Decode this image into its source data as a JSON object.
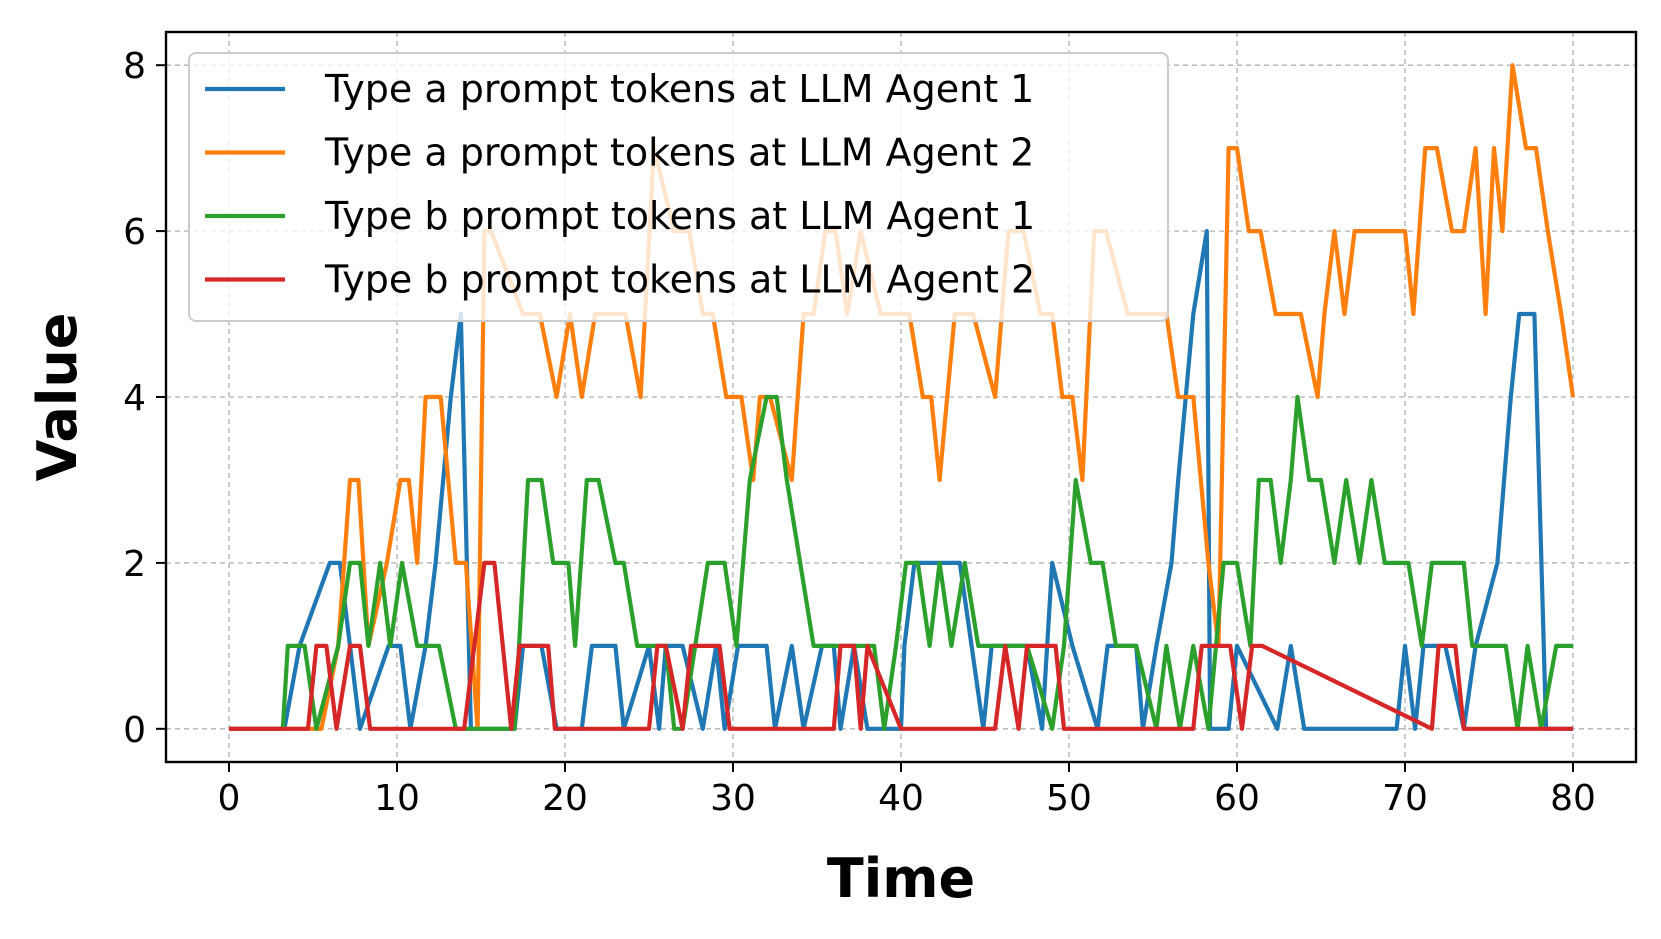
{
  "chart_data": {
    "type": "line",
    "title": "",
    "xlabel": "Time",
    "ylabel": "Value",
    "xlim": [
      -3.75,
      83.75
    ],
    "ylim": [
      -0.4,
      8.4
    ],
    "xticks": [
      0,
      10,
      20,
      30,
      40,
      50,
      60,
      70,
      80
    ],
    "yticks": [
      0,
      2,
      4,
      6,
      8
    ],
    "grid": true,
    "legend_position": "upper-left",
    "series": [
      {
        "name": "Type a prompt tokens at LLM Agent 1",
        "color": "#1f77b4",
        "x": [
          0,
          3.3,
          4.2,
          6,
          6.6,
          7.2,
          7.8,
          9.5,
          10.2,
          10.8,
          11.7,
          12.3,
          13.2,
          13.8,
          14.4,
          17,
          17.5,
          18.6,
          19.5,
          21,
          21.6,
          23,
          23.5,
          25,
          25.6,
          26,
          27,
          28.2,
          29,
          29.5,
          30.3,
          32,
          32.5,
          33.5,
          34.2,
          35.3,
          36,
          36.4,
          37.2,
          38,
          40,
          40.2,
          40.8,
          43.5,
          44.2,
          44.9,
          45.4,
          47.5,
          48.4,
          49,
          50.2,
          51.7,
          52.3,
          54,
          54.4,
          55.2,
          56.1,
          56.5,
          57.4,
          58.2,
          58.4,
          59.5,
          60,
          62.4,
          63.2,
          64,
          69.5,
          70,
          70.6,
          71.1,
          72.4,
          73.5,
          74.2,
          75.5,
          76.3,
          76.8,
          77.7,
          78.4,
          79.3,
          80
        ],
        "y": [
          0,
          0,
          1,
          2,
          2,
          1,
          0,
          1,
          1,
          0,
          1,
          2,
          4,
          5,
          0,
          0,
          1,
          1,
          0,
          0,
          1,
          1,
          0,
          1,
          0,
          1,
          1,
          0,
          1,
          0,
          1,
          1,
          0,
          1,
          0,
          1,
          1,
          0,
          1,
          0,
          0,
          1,
          2,
          2,
          1,
          0,
          1,
          1,
          0,
          2,
          1,
          0,
          1,
          1,
          0,
          1,
          2,
          3,
          5,
          6,
          0,
          0,
          1,
          0,
          1,
          0,
          0,
          1,
          0,
          1,
          1,
          0,
          1,
          2,
          4,
          5,
          5,
          0,
          0,
          0
        ]
      },
      {
        "name": "Type a prompt tokens at LLM Agent 2",
        "color": "#ff7f0e",
        "x": [
          0,
          3,
          5.5,
          6.5,
          7.2,
          7.7,
          8.3,
          9.4,
          10.2,
          10.7,
          11.2,
          11.7,
          12.6,
          13.5,
          14.1,
          14.8,
          15.2,
          15.6,
          17.5,
          18.5,
          19.5,
          20.3,
          21,
          21.8,
          22.5,
          23.6,
          24.5,
          25.3,
          26.5,
          27.4,
          28.2,
          28.8,
          29.6,
          30.5,
          31.2,
          31.6,
          32.2,
          33.5,
          34.2,
          34.8,
          35.5,
          36.1,
          36.8,
          37.6,
          38.8,
          39.6,
          40,
          40.5,
          41.3,
          41.8,
          42.3,
          43.2,
          44.3,
          45.6,
          46.4,
          47.3,
          48.3,
          49,
          49.6,
          50.2,
          50.8,
          51.5,
          52.2,
          53.5,
          55.8,
          56.5,
          57.4,
          58.3,
          58.9,
          59.5,
          60,
          60.7,
          61.4,
          62.3,
          63.1,
          63.8,
          64.8,
          65.2,
          65.8,
          66.4,
          67,
          67.6,
          68.2,
          68.8,
          69.3,
          70,
          70.5,
          71.2,
          71.9,
          72.8,
          73.5,
          74.2,
          74.8,
          75.3,
          75.8,
          76.4,
          77.2,
          77.8,
          78.5,
          79.3,
          80
        ],
        "y": [
          0,
          0,
          0,
          1,
          3,
          3,
          1,
          2,
          3,
          3,
          2,
          4,
          4,
          2,
          2,
          0,
          6,
          6,
          5,
          5,
          4,
          5,
          4,
          5,
          5,
          5,
          4,
          7,
          6,
          6,
          5,
          5,
          4,
          4,
          3,
          4,
          4,
          3,
          5,
          5,
          6,
          6,
          5,
          6,
          5,
          5,
          5,
          5,
          4,
          4,
          3,
          5,
          5,
          4,
          6,
          6,
          5,
          5,
          4,
          4,
          3,
          6,
          6,
          5,
          5,
          4,
          4,
          2,
          1,
          7,
          7,
          6,
          6,
          5,
          5,
          5,
          4,
          5,
          6,
          5,
          6,
          6,
          6,
          6,
          6,
          6,
          5,
          7,
          7,
          6,
          6,
          7,
          5,
          7,
          6,
          8,
          7,
          7,
          6,
          5,
          4
        ]
      },
      {
        "name": "Type b prompt tokens at LLM Agent 1",
        "color": "#2ca02c",
        "x": [
          0,
          3.2,
          3.5,
          4.5,
          5.2,
          6.5,
          7.2,
          7.8,
          8.3,
          9,
          9.6,
          10.3,
          11.2,
          11.8,
          12.5,
          13.5,
          14.4,
          15,
          16,
          17,
          17.8,
          18.6,
          19.3,
          20.2,
          20.6,
          21.3,
          22,
          23,
          23.5,
          24.3,
          25,
          26,
          26.5,
          27,
          28.5,
          29,
          29.5,
          30.2,
          31,
          32,
          32.6,
          33.2,
          34,
          34.8,
          35.6,
          36.5,
          37.4,
          38.4,
          39,
          39.7,
          40.3,
          41,
          41.7,
          42.3,
          43,
          43.8,
          44.6,
          45.3,
          46,
          47.5,
          49,
          49.7,
          50.4,
          51.3,
          52,
          52.8,
          54,
          55.2,
          55.8,
          56.6,
          57.4,
          58.3,
          59.2,
          60,
          60.8,
          61.3,
          62,
          62.6,
          63.2,
          63.6,
          64.3,
          65,
          65.8,
          66.5,
          67.3,
          68,
          68.8,
          69.4,
          70.2,
          71,
          71.6,
          72.4,
          73.5,
          74,
          74.6,
          75.2,
          76,
          76.7,
          77.3,
          78.1,
          79,
          80
        ],
        "y": [
          0,
          0,
          1,
          1,
          0,
          1,
          2,
          2,
          1,
          2,
          1,
          2,
          1,
          1,
          1,
          0,
          0,
          0,
          0,
          0,
          3,
          3,
          2,
          2,
          1,
          3,
          3,
          2,
          2,
          1,
          1,
          1,
          0,
          0,
          2,
          2,
          2,
          1,
          3,
          4,
          4,
          3,
          2,
          1,
          1,
          1,
          1,
          1,
          0,
          1,
          2,
          2,
          1,
          2,
          1,
          2,
          1,
          1,
          1,
          1,
          0,
          1,
          3,
          2,
          2,
          1,
          1,
          0,
          1,
          0,
          1,
          0,
          2,
          2,
          1,
          3,
          3,
          2,
          3,
          4,
          3,
          3,
          2,
          3,
          2,
          3,
          2,
          2,
          2,
          1,
          2,
          2,
          2,
          1,
          1,
          1,
          1,
          0,
          1,
          0,
          1,
          1
        ]
      },
      {
        "name": "Type b prompt tokens at LLM Agent 2",
        "color": "#d62728",
        "x": [
          0,
          4.7,
          5.2,
          5.8,
          6.4,
          7.2,
          7.8,
          8.4,
          9,
          14,
          14.6,
          15.2,
          15.8,
          16.3,
          16.8,
          17.3,
          17.9,
          18.5,
          19,
          19.4,
          25,
          25.5,
          26,
          27,
          27.5,
          28.5,
          29.2,
          29.8,
          32,
          36,
          36.4,
          37.2,
          37.6,
          38,
          40,
          45.6,
          46.2,
          47,
          47.5,
          48.3,
          49.2,
          49.7,
          52,
          53,
          53.6,
          57.4,
          57.9,
          59,
          59.6,
          60.3,
          60.9,
          61.5,
          71.6,
          72,
          73,
          73.5,
          74.2,
          80
        ],
        "y": [
          0,
          0,
          1,
          1,
          0,
          1,
          1,
          0,
          0,
          0,
          1,
          2,
          2,
          1,
          0,
          1,
          1,
          1,
          1,
          0,
          0,
          1,
          1,
          0,
          1,
          1,
          1,
          0,
          0,
          0,
          1,
          1,
          0,
          1,
          0,
          0,
          1,
          0,
          1,
          1,
          1,
          0,
          0,
          0,
          0,
          0,
          1,
          1,
          1,
          0,
          1,
          1,
          0,
          1,
          1,
          0,
          0,
          0
        ]
      }
    ]
  }
}
